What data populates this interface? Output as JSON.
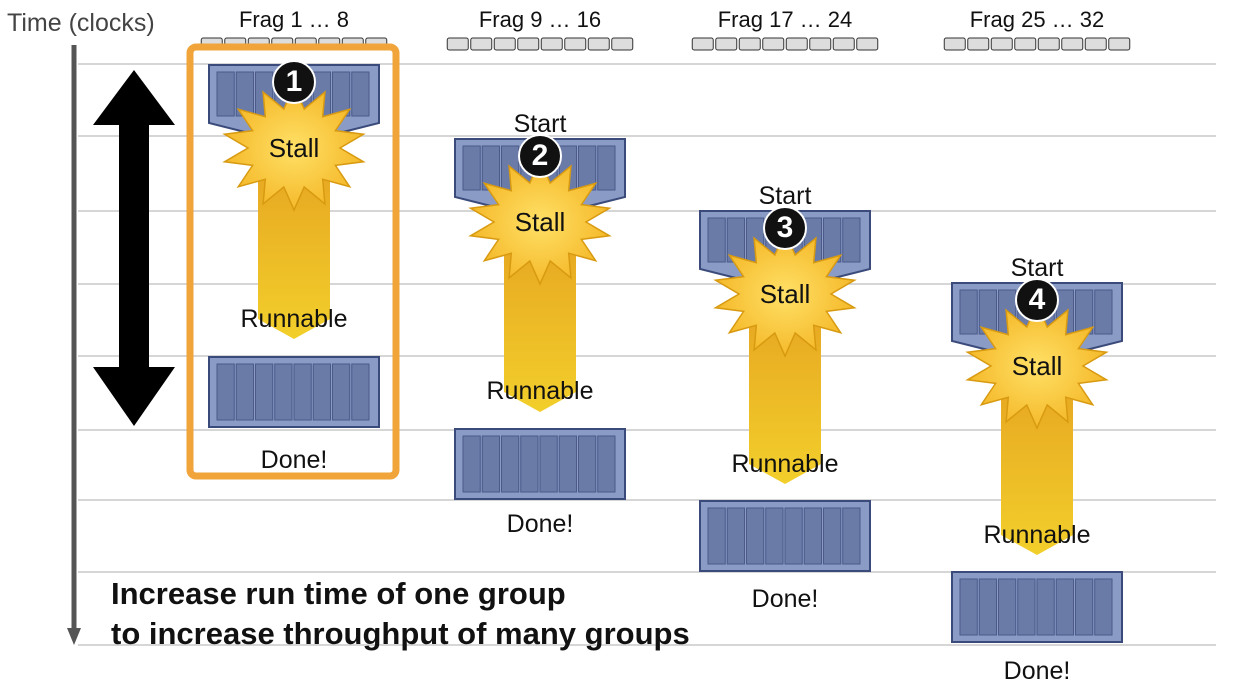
{
  "axis": {
    "label": "Time (clocks)"
  },
  "groups": [
    {
      "title": "Frag 1 … 8",
      "badge": "1",
      "start": "",
      "stall": "Stall",
      "runnable": "Runnable",
      "done": "Done!",
      "highlighted": true
    },
    {
      "title": "Frag 9 … 16",
      "badge": "2",
      "start": "Start",
      "stall": "Stall",
      "runnable": "Runnable",
      "done": "Done!",
      "highlighted": false
    },
    {
      "title": "Frag 17 … 24",
      "badge": "3",
      "start": "Start",
      "stall": "Stall",
      "runnable": "Runnable",
      "done": "Done!",
      "highlighted": false
    },
    {
      "title": "Frag 25 … 32",
      "badge": "4",
      "start": "Start",
      "stall": "Stall",
      "runnable": "Runnable",
      "done": "Done!",
      "highlighted": false
    }
  ],
  "message": {
    "line1": "Increase run time of one group",
    "line2": "to increase throughput of many groups"
  },
  "colors": {
    "block_fill": "#8a9bc6",
    "block_stroke": "#3a4a7a",
    "cell_fill": "#6b7ba8",
    "arrow_top": "#f6c22c",
    "arrow_bottom": "#e3a21e",
    "stall_burst": "#f7c52d",
    "highlight": "#f0a43a",
    "grid_line": "#c9c9c9",
    "badge": "#111111"
  }
}
